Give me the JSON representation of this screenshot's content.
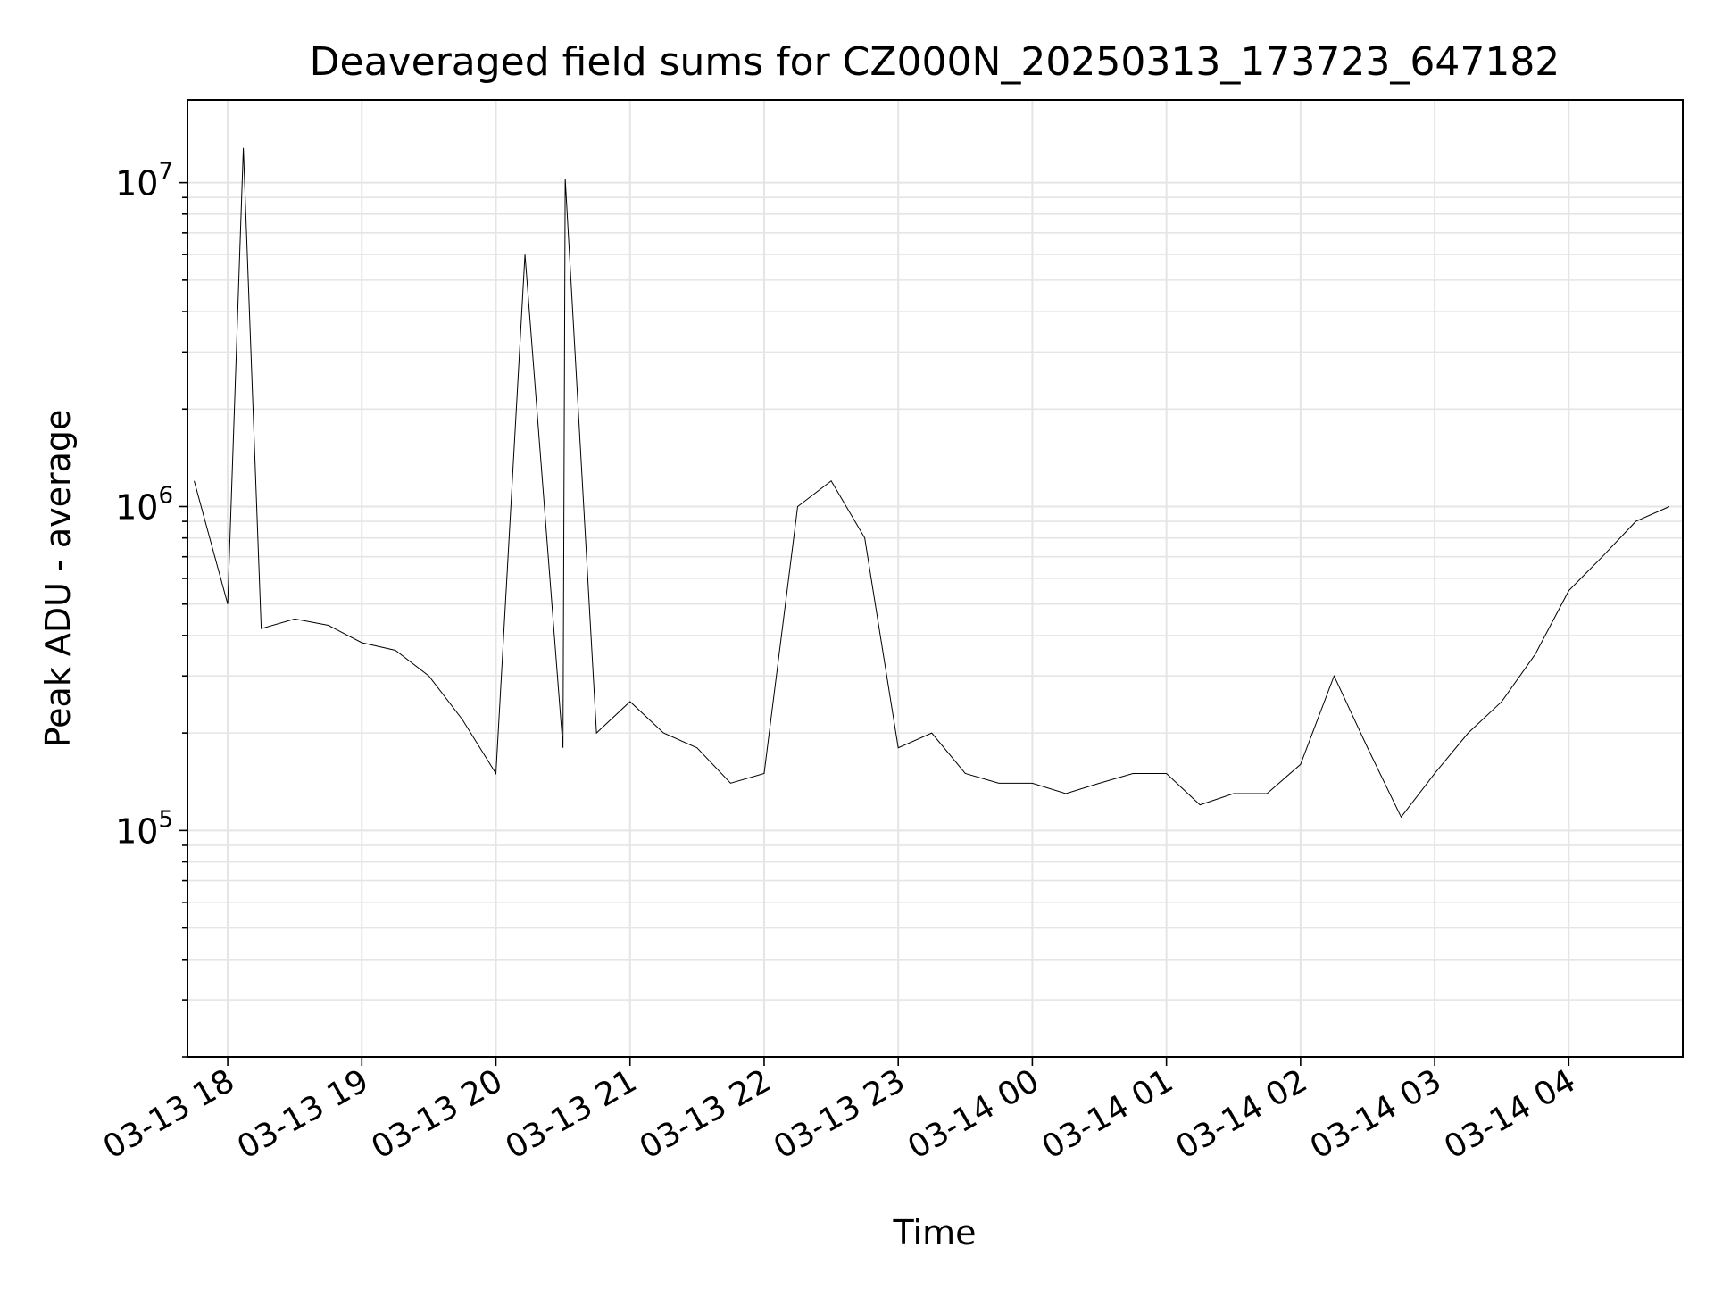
{
  "chart_data": {
    "type": "line",
    "title": "Deaveraged field sums for CZ000N_20250313_173723_647182",
    "xlabel": "Time",
    "ylabel": "Peak ADU - average",
    "yscale": "log",
    "ylim": [
      20000,
      18000000
    ],
    "xlim": [
      "2025-03-13 17:42",
      "2025-03-14 04:51"
    ],
    "grid": true,
    "line_color": "#000000",
    "grid_color": "#e5e5e5",
    "x_ticks": [
      "03-13 18",
      "03-13 19",
      "03-13 20",
      "03-13 21",
      "03-13 22",
      "03-13 23",
      "03-14 00",
      "03-14 01",
      "03-14 02",
      "03-14 03",
      "03-14 04"
    ],
    "y_ticks": [
      {
        "value": 100000,
        "base": "10",
        "exp": "5"
      },
      {
        "value": 1000000,
        "base": "10",
        "exp": "6"
      },
      {
        "value": 10000000,
        "base": "10",
        "exp": "7"
      }
    ],
    "series": [
      {
        "x": [
          "2025-03-13 17:45",
          "2025-03-13 18:00",
          "2025-03-13 18:07",
          "2025-03-13 18:15",
          "2025-03-13 18:30",
          "2025-03-13 18:45",
          "2025-03-13 19:00",
          "2025-03-13 19:15",
          "2025-03-13 19:30",
          "2025-03-13 19:45",
          "2025-03-13 20:00",
          "2025-03-13 20:13",
          "2025-03-13 20:30",
          "2025-03-13 20:31",
          "2025-03-13 20:45",
          "2025-03-13 21:00",
          "2025-03-13 21:15",
          "2025-03-13 21:30",
          "2025-03-13 21:45",
          "2025-03-13 22:00",
          "2025-03-13 22:15",
          "2025-03-13 22:30",
          "2025-03-13 22:45",
          "2025-03-13 23:00",
          "2025-03-13 23:15",
          "2025-03-13 23:30",
          "2025-03-13 23:45",
          "2025-03-14 00:00",
          "2025-03-14 00:15",
          "2025-03-14 00:30",
          "2025-03-14 00:45",
          "2025-03-14 01:00",
          "2025-03-14 01:15",
          "2025-03-14 01:30",
          "2025-03-14 01:45",
          "2025-03-14 02:00",
          "2025-03-14 02:15",
          "2025-03-14 02:30",
          "2025-03-14 02:45",
          "2025-03-14 03:00",
          "2025-03-14 03:15",
          "2025-03-14 03:30",
          "2025-03-14 03:45",
          "2025-03-14 04:00",
          "2025-03-14 04:15",
          "2025-03-14 04:30",
          "2025-03-14 04:45"
        ],
        "y": [
          1200000,
          500000,
          12800000,
          420000,
          450000,
          430000,
          380000,
          360000,
          300000,
          220000,
          150000,
          6000000,
          180000,
          10300000,
          200000,
          250000,
          200000,
          180000,
          140000,
          150000,
          1000000,
          1200000,
          800000,
          180000,
          200000,
          150000,
          140000,
          140000,
          130000,
          140000,
          150000,
          150000,
          120000,
          130000,
          130000,
          160000,
          300000,
          180000,
          110000,
          150000,
          200000,
          250000,
          350000,
          550000,
          700000,
          900000,
          1000000
        ]
      }
    ]
  }
}
